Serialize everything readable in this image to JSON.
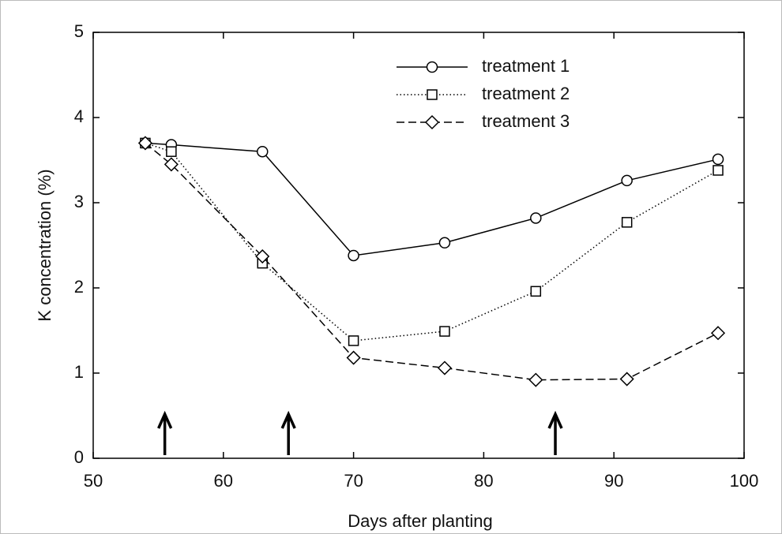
{
  "chart_data": {
    "type": "line",
    "x_label": "Days after planting",
    "y_label": "K concentration (%)",
    "x": [
      54,
      56,
      63,
      70,
      77,
      84,
      91,
      98
    ],
    "series": [
      {
        "name": "treatment 1",
        "color": "#000000",
        "marker": "circle",
        "linestyle": "solid",
        "values": [
          3.7,
          3.68,
          3.6,
          2.38,
          2.53,
          2.82,
          3.26,
          3.51
        ]
      },
      {
        "name": "treatment 2",
        "color": "#000000",
        "marker": "square",
        "linestyle": "dotted",
        "values": [
          3.7,
          3.6,
          2.29,
          1.38,
          1.49,
          1.96,
          2.77,
          3.38
        ]
      },
      {
        "name": "treatment 3",
        "color": "#000000",
        "marker": "diamond",
        "linestyle": "dashed",
        "values": [
          3.7,
          3.45,
          2.37,
          1.18,
          1.06,
          0.92,
          0.93,
          1.47
        ]
      }
    ],
    "arrows_x": [
      55.5,
      65,
      85.5
    ],
    "xlim": [
      50,
      100
    ],
    "xticks": [
      50,
      60,
      70,
      80,
      90,
      100
    ],
    "ylim": [
      0,
      5
    ],
    "yticks": [
      0,
      1,
      2,
      3,
      4,
      5
    ],
    "legend": "upper center",
    "grid": false
  }
}
